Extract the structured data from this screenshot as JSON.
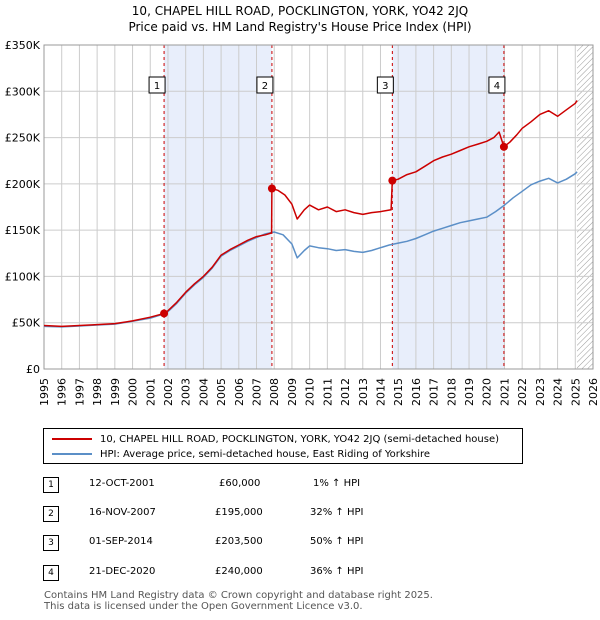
{
  "title_line1": "10, CHAPEL HILL ROAD, POCKLINGTON, YORK, YO42 2JQ",
  "title_line2": "Price paid vs. HM Land Registry's House Price Index (HPI)",
  "colors": {
    "property": "#cc0000",
    "hpi": "#5b8fc7",
    "shade": "#e8eefb",
    "grid": "#cccccc",
    "hatch": "#999999"
  },
  "chart_data": {
    "type": "line",
    "x_range": [
      1995,
      2026
    ],
    "y_range": [
      0,
      350000
    ],
    "y_ticks": [
      0,
      50000,
      100000,
      150000,
      200000,
      250000,
      300000,
      350000
    ],
    "y_tick_labels": [
      "£0",
      "£50K",
      "£100K",
      "£150K",
      "£200K",
      "£250K",
      "£300K",
      "£350K"
    ],
    "x_ticks": [
      1995,
      1996,
      1997,
      1998,
      1999,
      2000,
      2001,
      2002,
      2003,
      2004,
      2005,
      2006,
      2007,
      2008,
      2009,
      2010,
      2011,
      2012,
      2013,
      2014,
      2015,
      2016,
      2017,
      2018,
      2019,
      2020,
      2021,
      2022,
      2023,
      2024,
      2025,
      2026
    ],
    "x_tick_labels": [
      "1995",
      "1996",
      "1997",
      "1998",
      "1999",
      "2000",
      "2001",
      "2002",
      "2003",
      "2004",
      "2005",
      "2006",
      "2007",
      "2008",
      "2009",
      "2010",
      "2011",
      "2012",
      "2013",
      "2014",
      "2015",
      "2016",
      "2017",
      "2018",
      "2019",
      "2020",
      "2021",
      "2022",
      "2023",
      "2024",
      "2025",
      "2026"
    ],
    "shaded_ranges": [
      [
        2001.78,
        2007.87
      ],
      [
        2014.67,
        2020.97
      ]
    ],
    "forecast_hatch_from": 2025.1,
    "series": [
      {
        "name": "10, CHAPEL HILL ROAD, POCKLINGTON, YORK, YO42 2JQ (semi-detached house)",
        "color": "#cc0000",
        "points": [
          [
            1995,
            47000
          ],
          [
            1996,
            46000
          ],
          [
            1997,
            47000
          ],
          [
            1998,
            48000
          ],
          [
            1999,
            49000
          ],
          [
            2000,
            52000
          ],
          [
            2001,
            56000
          ],
          [
            2001.78,
            60000
          ],
          [
            2002,
            63000
          ],
          [
            2002.5,
            72000
          ],
          [
            2003,
            83000
          ],
          [
            2003.5,
            92000
          ],
          [
            2004,
            100000
          ],
          [
            2004.5,
            110000
          ],
          [
            2005,
            123000
          ],
          [
            2005.5,
            129000
          ],
          [
            2006,
            134000
          ],
          [
            2006.5,
            139000
          ],
          [
            2007,
            143000
          ],
          [
            2007.5,
            145000
          ],
          [
            2007.85,
            147000
          ],
          [
            2007.87,
            195000
          ],
          [
            2008.2,
            193000
          ],
          [
            2008.6,
            188000
          ],
          [
            2009,
            178000
          ],
          [
            2009.3,
            162000
          ],
          [
            2009.7,
            172000
          ],
          [
            2010,
            177000
          ],
          [
            2010.5,
            172000
          ],
          [
            2011,
            175000
          ],
          [
            2011.5,
            170000
          ],
          [
            2012,
            172000
          ],
          [
            2012.5,
            169000
          ],
          [
            2013,
            167000
          ],
          [
            2013.5,
            169000
          ],
          [
            2014,
            170000
          ],
          [
            2014.6,
            172000
          ],
          [
            2014.67,
            203500
          ],
          [
            2015,
            205000
          ],
          [
            2015.5,
            210000
          ],
          [
            2016,
            213000
          ],
          [
            2016.5,
            219000
          ],
          [
            2017,
            225000
          ],
          [
            2017.5,
            229000
          ],
          [
            2018,
            232000
          ],
          [
            2018.5,
            236000
          ],
          [
            2019,
            240000
          ],
          [
            2019.5,
            243000
          ],
          [
            2020,
            246000
          ],
          [
            2020.4,
            250000
          ],
          [
            2020.7,
            256000
          ],
          [
            2020.97,
            240000
          ],
          [
            2021.3,
            245000
          ],
          [
            2021.7,
            253000
          ],
          [
            2022,
            260000
          ],
          [
            2022.5,
            267000
          ],
          [
            2023,
            275000
          ],
          [
            2023.5,
            279000
          ],
          [
            2024,
            273000
          ],
          [
            2024.5,
            280000
          ],
          [
            2025,
            287000
          ],
          [
            2025.1,
            290000
          ]
        ]
      },
      {
        "name": "HPI: Average price, semi-detached house, East Riding of Yorkshire",
        "color": "#5b8fc7",
        "points": [
          [
            1995,
            46000
          ],
          [
            1996,
            45500
          ],
          [
            1997,
            46500
          ],
          [
            1998,
            47500
          ],
          [
            1999,
            48500
          ],
          [
            2000,
            51500
          ],
          [
            2001,
            55000
          ],
          [
            2001.78,
            59500
          ],
          [
            2002,
            62000
          ],
          [
            2002.5,
            71000
          ],
          [
            2003,
            82000
          ],
          [
            2003.5,
            91000
          ],
          [
            2004,
            99000
          ],
          [
            2004.5,
            109000
          ],
          [
            2005,
            122000
          ],
          [
            2005.5,
            128000
          ],
          [
            2006,
            133000
          ],
          [
            2006.5,
            138000
          ],
          [
            2007,
            142000
          ],
          [
            2007.5,
            146000
          ],
          [
            2008,
            148000
          ],
          [
            2008.5,
            145000
          ],
          [
            2009,
            135000
          ],
          [
            2009.3,
            120000
          ],
          [
            2009.7,
            128000
          ],
          [
            2010,
            133000
          ],
          [
            2010.5,
            131000
          ],
          [
            2011,
            130000
          ],
          [
            2011.5,
            128000
          ],
          [
            2012,
            129000
          ],
          [
            2012.5,
            127000
          ],
          [
            2013,
            126000
          ],
          [
            2013.5,
            128000
          ],
          [
            2014,
            131000
          ],
          [
            2014.5,
            134000
          ],
          [
            2015,
            136000
          ],
          [
            2015.5,
            138000
          ],
          [
            2016,
            141000
          ],
          [
            2016.5,
            145000
          ],
          [
            2017,
            149000
          ],
          [
            2017.5,
            152000
          ],
          [
            2018,
            155000
          ],
          [
            2018.5,
            158000
          ],
          [
            2019,
            160000
          ],
          [
            2019.5,
            162000
          ],
          [
            2020,
            164000
          ],
          [
            2020.5,
            170000
          ],
          [
            2021,
            177000
          ],
          [
            2021.5,
            185000
          ],
          [
            2022,
            192000
          ],
          [
            2022.5,
            199000
          ],
          [
            2023,
            203000
          ],
          [
            2023.5,
            206000
          ],
          [
            2024,
            201000
          ],
          [
            2024.5,
            205000
          ],
          [
            2025,
            211000
          ],
          [
            2025.1,
            213000
          ]
        ]
      }
    ],
    "sale_markers": [
      {
        "label": "1",
        "x": 2001.78,
        "y": 60000
      },
      {
        "label": "2",
        "x": 2007.87,
        "y": 195000
      },
      {
        "label": "3",
        "x": 2014.67,
        "y": 203500
      },
      {
        "label": "4",
        "x": 2020.97,
        "y": 240000
      }
    ]
  },
  "legend": {
    "property_label": "10, CHAPEL HILL ROAD, POCKLINGTON, YORK, YO42 2JQ (semi-detached house)",
    "hpi_label": "HPI: Average price, semi-detached house, East Riding of Yorkshire"
  },
  "sales": [
    {
      "num": "1",
      "date": "12-OCT-2001",
      "price": "£60,000",
      "hpi": "1% ↑ HPI"
    },
    {
      "num": "2",
      "date": "16-NOV-2007",
      "price": "£195,000",
      "hpi": "32% ↑ HPI"
    },
    {
      "num": "3",
      "date": "01-SEP-2014",
      "price": "£203,500",
      "hpi": "50% ↑ HPI"
    },
    {
      "num": "4",
      "date": "21-DEC-2020",
      "price": "£240,000",
      "hpi": "36% ↑ HPI"
    }
  ],
  "footer_line1": "Contains HM Land Registry data © Crown copyright and database right 2025.",
  "footer_line2": "This data is licensed under the Open Government Licence v3.0."
}
